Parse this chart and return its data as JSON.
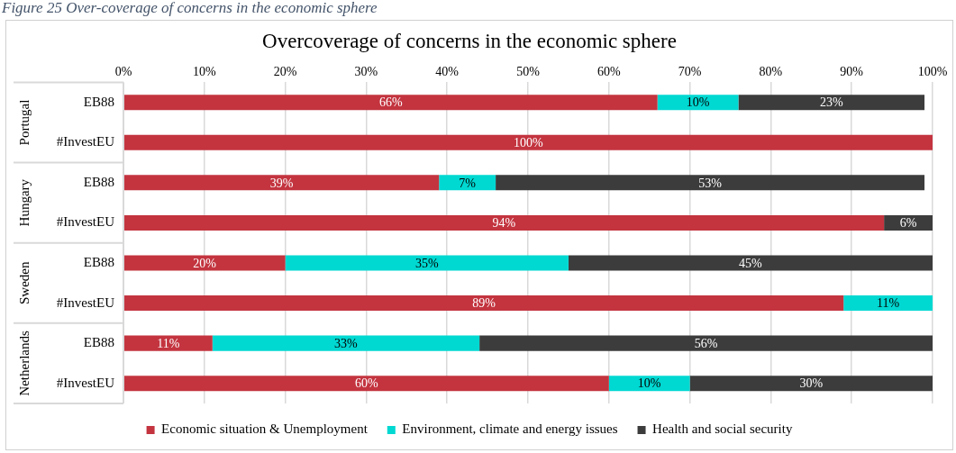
{
  "chart_data": {
    "type": "bar",
    "orientation": "horizontal",
    "stacked": true,
    "title": "Overcoverage of concerns in the economic sphere",
    "annotations": [
      "Figure 25 Over-coverage of concerns in the economic sphere",
      "Portugal",
      "Hungary",
      "Sweden",
      "Netherlands"
    ],
    "categories": [
      "EB88",
      "#InvestEU",
      "EB88",
      "#InvestEU",
      "EB88",
      "#InvestEU",
      "EB88",
      "#InvestEU"
    ],
    "series": [
      {
        "name": "Economic situation & Unemployment",
        "color": "#c3343f",
        "values": [
          66,
          100,
          39,
          94,
          20,
          89,
          11,
          60
        ],
        "value_labels": [
          "66%",
          "100%",
          "39%",
          "94%",
          "20%",
          "89%",
          "11%",
          "60%"
        ]
      },
      {
        "name": "Environment, climate and energy issues",
        "color": "#00d8d2",
        "values": [
          10,
          null,
          7,
          null,
          35,
          11,
          33,
          10
        ],
        "value_labels": [
          "10%",
          null,
          "7%",
          null,
          "35%",
          "11%",
          "33%",
          "10%"
        ]
      },
      {
        "name": "Health and social security",
        "color": "#3c3c3c",
        "values": [
          23,
          null,
          53,
          6,
          45,
          null,
          56,
          30
        ],
        "value_labels": [
          "23%",
          null,
          "53%",
          "6%",
          "45%",
          null,
          "56%",
          "30%"
        ]
      }
    ],
    "xlim": [
      0,
      100
    ],
    "xticks": [
      {
        "value": 0,
        "label": "0%"
      },
      {
        "value": 10,
        "label": "10%"
      },
      {
        "value": 20,
        "label": "20%"
      },
      {
        "value": 30,
        "label": "30%"
      },
      {
        "value": 40,
        "label": "40%"
      },
      {
        "value": 50,
        "label": "50%"
      },
      {
        "value": 60,
        "label": "60%"
      },
      {
        "value": 70,
        "label": "70%"
      },
      {
        "value": 80,
        "label": "80%"
      },
      {
        "value": 90,
        "label": "90%"
      },
      {
        "value": 100,
        "label": "100%"
      }
    ],
    "grid": "x",
    "legend": "bottom"
  }
}
